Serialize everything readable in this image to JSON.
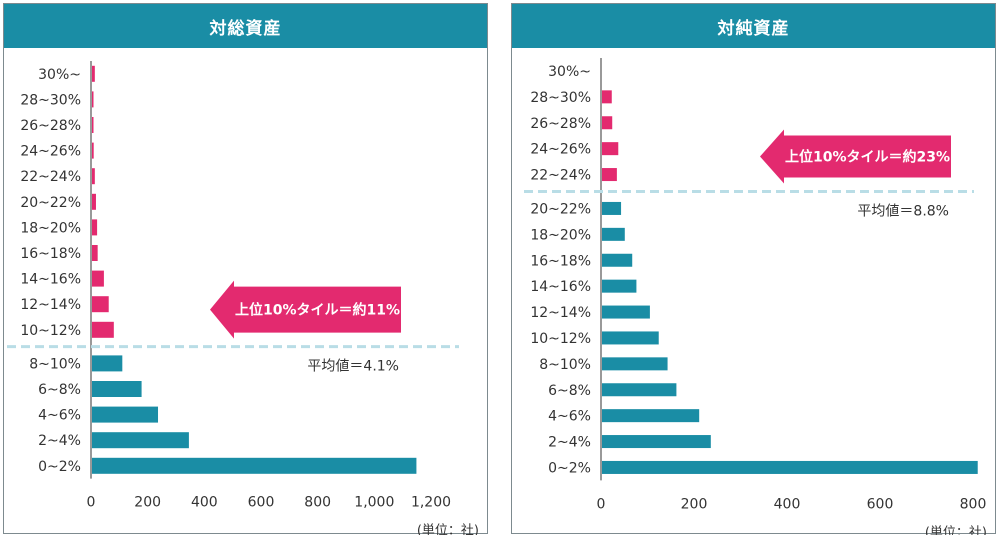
{
  "chart_data": [
    {
      "type": "bar",
      "orientation": "horizontal",
      "title": "対総資産",
      "categories": [
        "0~2%",
        "2~4%",
        "4~6%",
        "6~8%",
        "8~10%",
        "10~12%",
        "12~14%",
        "14~16%",
        "16~18%",
        "18~20%",
        "20~22%",
        "22~24%",
        "24~26%",
        "26~28%",
        "28~30%",
        "30%~"
      ],
      "values": [
        1145,
        342,
        233,
        175,
        107,
        77,
        59,
        42,
        20,
        18,
        14,
        10,
        6,
        4,
        3,
        10
      ],
      "highlight_from_index": 5,
      "colors": {
        "normal": "#1a8da5",
        "highlight": "#e32a6f"
      },
      "xlim": [
        0,
        1200
      ],
      "xticks": [
        "0",
        "200",
        "400",
        "600",
        "800",
        "1,000",
        "1,200"
      ],
      "unit_label": "(単位：社)",
      "annotation": {
        "arrow_text": "上位10%タイル＝約11%",
        "mean_text": "平均値＝4.1%"
      }
    },
    {
      "type": "bar",
      "orientation": "horizontal",
      "title": "対純資産",
      "categories": [
        "0~2%",
        "2~4%",
        "4~6%",
        "6~8%",
        "8~10%",
        "10~12%",
        "12~14%",
        "14~16%",
        "16~18%",
        "18~20%",
        "20~22%",
        "22~24%",
        "24~26%",
        "26~28%",
        "28~30%",
        "30%~"
      ],
      "values": [
        808,
        234,
        209,
        160,
        141,
        122,
        103,
        74,
        65,
        49,
        41,
        32,
        35,
        22,
        21,
        0
      ],
      "highlight_from_index": 11,
      "colors": {
        "normal": "#1a8da5",
        "highlight": "#e32a6f"
      },
      "xlim": [
        0,
        800
      ],
      "xticks": [
        "0",
        "200",
        "400",
        "600",
        "800"
      ],
      "unit_label": "(単位：社)",
      "annotation": {
        "arrow_text": "上位10%タイル＝約23%",
        "mean_text": "平均値＝8.8%"
      }
    }
  ]
}
